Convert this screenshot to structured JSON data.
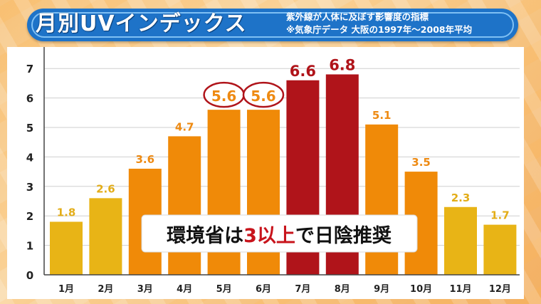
{
  "header": {
    "title": "月別UVインデックス",
    "subtitle_line1": "紫外線が人体に及ぼす影響度の指標",
    "subtitle_line2": "※気象庁データ 大阪の1997年～2008年平均"
  },
  "chart_data": {
    "type": "bar",
    "categories": [
      "1月",
      "2月",
      "3月",
      "4月",
      "5月",
      "6月",
      "7月",
      "8月",
      "9月",
      "10月",
      "11月",
      "12月"
    ],
    "values": [
      1.8,
      2.6,
      3.6,
      4.7,
      5.6,
      5.6,
      6.6,
      6.8,
      5.1,
      3.5,
      2.3,
      1.7
    ],
    "value_labels": [
      "1.8",
      "2.6",
      "3.6",
      "4.7",
      "5.6",
      "5.6",
      "6.6",
      "6.8",
      "5.1",
      "3.5",
      "2.3",
      "1.7"
    ],
    "bar_colors": [
      "#e8b416",
      "#e8b416",
      "#f08a08",
      "#f08a08",
      "#f08a08",
      "#f08a08",
      "#b0141a",
      "#b0141a",
      "#f08a08",
      "#f08a08",
      "#e8b416",
      "#e8b416"
    ],
    "label_colors": [
      "#e3ad18",
      "#e3ad18",
      "#ee8a12",
      "#ee8a12",
      "#ee8a12",
      "#ee8a12",
      "#b0141a",
      "#b0141a",
      "#ee8a12",
      "#ee8a12",
      "#e3ad18",
      "#e3ad18"
    ],
    "circled_indices": [
      4,
      5
    ],
    "yticks": [
      0,
      1,
      2,
      3,
      4,
      5,
      6,
      7
    ],
    "ylim": [
      0,
      7.5
    ],
    "grid": true,
    "annotation": {
      "parts": [
        "環境省は",
        "3以上",
        "で日陰推奨"
      ],
      "highlight_color": "#c8141c"
    }
  }
}
